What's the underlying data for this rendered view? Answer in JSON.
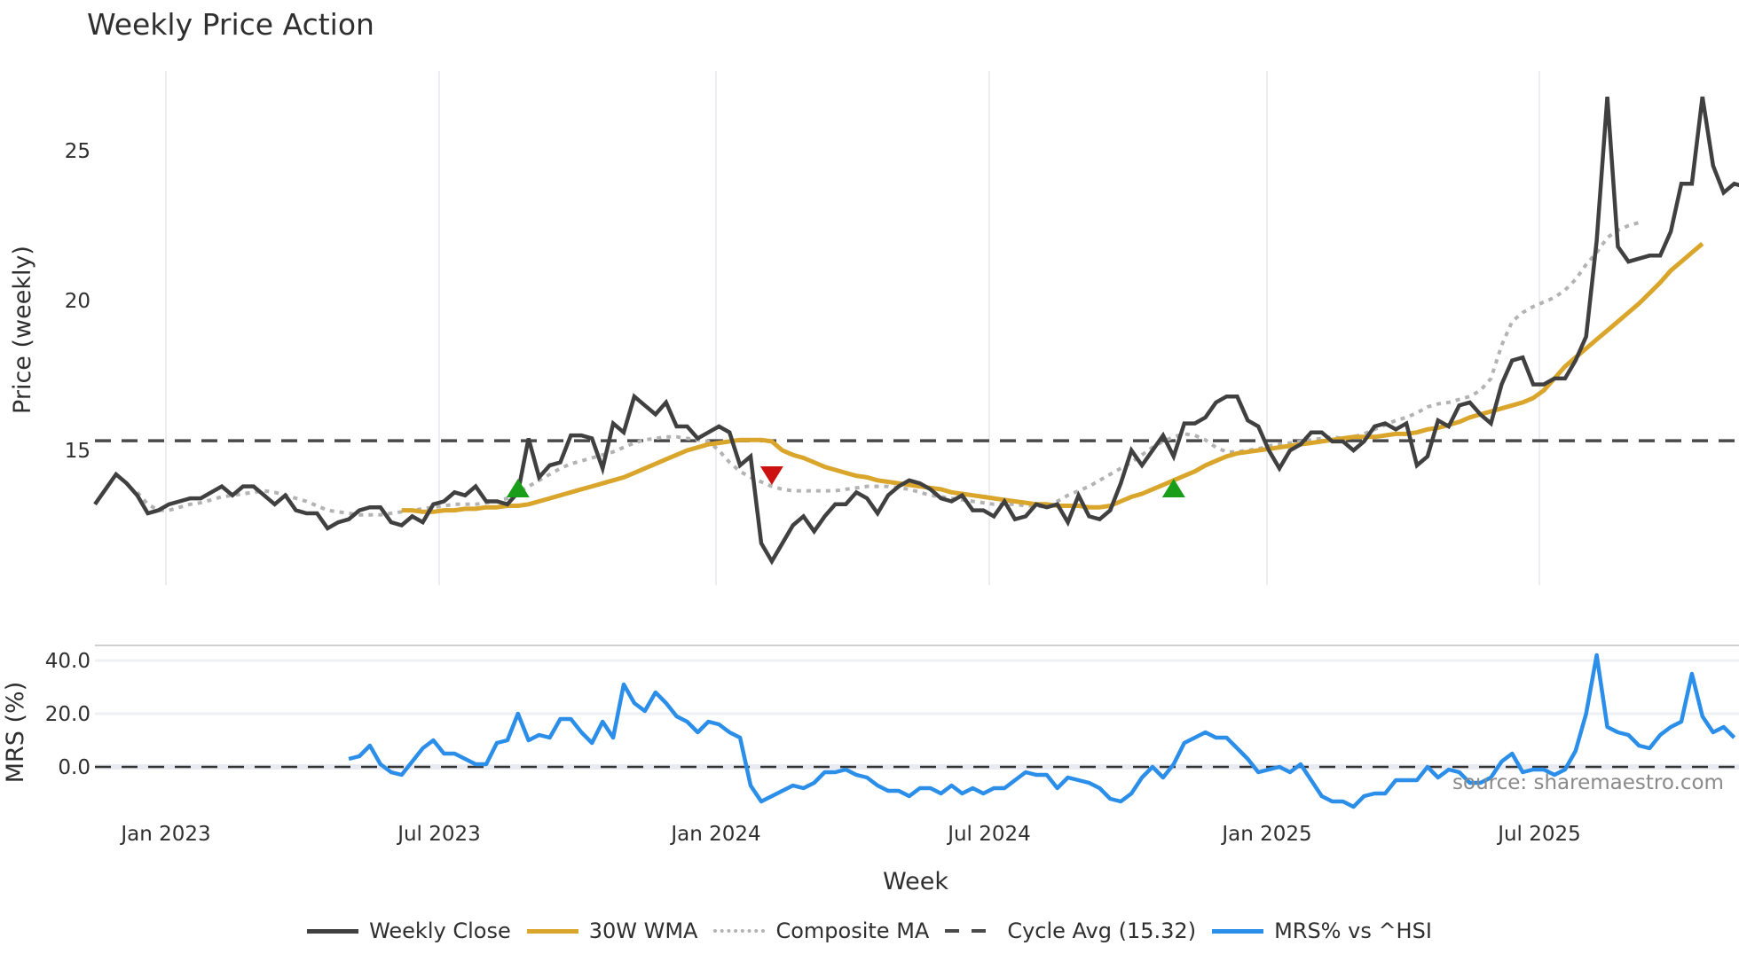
{
  "chart_data": [
    {
      "type": "line",
      "title": "Weekly Price Action",
      "xlabel": "Week",
      "ylabel": "Price (weekly)",
      "x_ticks": [
        "Jan 2023",
        "Jul 2023",
        "Jan 2024",
        "Jul 2024",
        "Jan 2025",
        "Jul 2025"
      ],
      "y_ticks": [
        15,
        20,
        25
      ],
      "ylim": [
        10.6,
        27.6
      ],
      "grid": "vertical",
      "x_start_week_offset": -6.7,
      "series": [
        {
          "name": "Weekly Close",
          "color": "#404040",
          "start_index": 0,
          "values": [
            13.2,
            13.7,
            14.2,
            13.9,
            13.5,
            12.9,
            13.0,
            13.2,
            13.3,
            13.4,
            13.4,
            13.6,
            13.8,
            13.5,
            13.8,
            13.8,
            13.5,
            13.2,
            13.5,
            13.0,
            12.9,
            12.9,
            12.4,
            12.6,
            12.7,
            13.0,
            13.1,
            13.1,
            12.6,
            12.5,
            12.8,
            12.6,
            13.2,
            13.3,
            13.6,
            13.5,
            13.8,
            13.3,
            13.3,
            13.2,
            13.6,
            15.4,
            14.1,
            14.5,
            14.6,
            15.5,
            15.5,
            15.4,
            14.4,
            15.9,
            15.6,
            16.8,
            16.5,
            16.2,
            16.6,
            15.8,
            15.8,
            15.4,
            15.6,
            15.8,
            15.6,
            14.5,
            14.8,
            11.9,
            11.3,
            11.9,
            12.5,
            12.8,
            12.3,
            12.8,
            13.2,
            13.2,
            13.6,
            13.4,
            12.9,
            13.5,
            13.8,
            14.0,
            13.9,
            13.7,
            13.4,
            13.3,
            13.5,
            13.0,
            13.0,
            12.8,
            13.3,
            12.7,
            12.8,
            13.2,
            13.1,
            13.2,
            12.6,
            13.5,
            12.8,
            12.7,
            13.0,
            13.9,
            15.0,
            14.5,
            15.0,
            15.5,
            14.8,
            15.9,
            15.9,
            16.1,
            16.6,
            16.8,
            16.8,
            16.0,
            15.8,
            15.0,
            14.4,
            15.0,
            15.2,
            15.6,
            15.6,
            15.3,
            15.3,
            15.0,
            15.3,
            15.8,
            15.9,
            15.7,
            15.9,
            14.5,
            14.8,
            16.0,
            15.8,
            16.5,
            16.6,
            16.2,
            15.9,
            17.2,
            18.0,
            18.1,
            17.2,
            17.2,
            17.4,
            17.4,
            18.0,
            18.8,
            22.0,
            26.8,
            21.8,
            21.3,
            21.4,
            21.5,
            21.5,
            22.3,
            23.9,
            23.9,
            26.8,
            24.5,
            23.6,
            23.9,
            23.8
          ]
        },
        {
          "name": "30W WMA",
          "color": "#d9a52a",
          "start_index": 29,
          "values": [
            13.0,
            13.0,
            12.95,
            12.95,
            13.0,
            13.0,
            13.05,
            13.05,
            13.1,
            13.1,
            13.15,
            13.15,
            13.2,
            13.3,
            13.4,
            13.5,
            13.6,
            13.7,
            13.8,
            13.9,
            14.0,
            14.1,
            14.25,
            14.4,
            14.55,
            14.7,
            14.85,
            15.0,
            15.1,
            15.2,
            15.25,
            15.3,
            15.35,
            15.35,
            15.35,
            15.3,
            15.0,
            14.85,
            14.75,
            14.6,
            14.45,
            14.35,
            14.25,
            14.15,
            14.1,
            14.0,
            13.95,
            13.9,
            13.85,
            13.8,
            13.75,
            13.7,
            13.6,
            13.55,
            13.5,
            13.45,
            13.4,
            13.35,
            13.3,
            13.25,
            13.2,
            13.2,
            13.15,
            13.15,
            13.15,
            13.1,
            13.1,
            13.15,
            13.3,
            13.45,
            13.55,
            13.7,
            13.85,
            14.0,
            14.15,
            14.3,
            14.5,
            14.65,
            14.8,
            14.9,
            14.95,
            15.0,
            15.05,
            15.1,
            15.15,
            15.2,
            15.25,
            15.3,
            15.35,
            15.4,
            15.45,
            15.45,
            15.45,
            15.5,
            15.55,
            15.55,
            15.6,
            15.7,
            15.75,
            15.85,
            15.95,
            16.1,
            16.2,
            16.3,
            16.4,
            16.5,
            16.6,
            16.75,
            17.0,
            17.4,
            17.8,
            18.1,
            18.4,
            18.7,
            19.0,
            19.3,
            19.6,
            19.9,
            20.25,
            20.6,
            21.0,
            21.3,
            21.6,
            21.9
          ]
        },
        {
          "name": "Composite MA",
          "color": "#b3b3b3",
          "start_index": 4,
          "values": [
            13.6,
            13.2,
            13.0,
            13.0,
            13.1,
            13.2,
            13.25,
            13.35,
            13.45,
            13.5,
            13.55,
            13.6,
            13.65,
            13.6,
            13.5,
            13.4,
            13.3,
            13.15,
            13.0,
            12.95,
            12.9,
            12.85,
            12.85,
            12.85,
            12.9,
            12.95,
            13.0,
            13.05,
            13.1,
            13.15,
            13.2,
            13.2,
            13.2,
            13.25,
            13.3,
            13.4,
            13.6,
            13.8,
            14.0,
            14.2,
            14.4,
            14.55,
            14.65,
            14.75,
            14.85,
            14.95,
            15.1,
            15.25,
            15.35,
            15.4,
            15.45,
            15.45,
            15.4,
            15.35,
            15.3,
            15.0,
            14.6,
            14.3,
            14.1,
            13.95,
            13.8,
            13.7,
            13.65,
            13.65,
            13.65,
            13.65,
            13.65,
            13.7,
            13.75,
            13.8,
            13.8,
            13.8,
            13.75,
            13.7,
            13.6,
            13.5,
            13.45,
            13.4,
            13.35,
            13.3,
            13.25,
            13.2,
            13.2,
            13.2,
            13.15,
            13.15,
            13.1,
            13.3,
            13.5,
            13.65,
            13.8,
            14.0,
            14.2,
            14.4,
            14.6,
            14.85,
            15.1,
            15.3,
            15.45,
            15.55,
            15.5,
            15.35,
            15.1,
            14.95,
            14.95,
            15.0,
            15.05,
            15.15,
            15.2,
            15.25,
            15.3,
            15.35,
            15.4,
            15.45,
            15.4,
            15.45,
            15.55,
            15.7,
            15.85,
            16.0,
            16.1,
            16.25,
            16.45,
            16.55,
            16.6,
            16.7,
            16.8,
            17.0,
            17.4,
            18.5,
            19.3,
            19.6,
            19.8,
            19.95,
            20.1,
            20.35,
            20.7,
            21.2,
            21.6,
            22.1,
            22.35,
            22.5,
            22.6
          ]
        },
        {
          "name": "Cycle Avg (15.32)",
          "color": "#4a4a4a",
          "constant": 15.32
        }
      ],
      "markers": [
        {
          "type": "buy",
          "shape": "triangle-up",
          "color": "#1a9e1a",
          "week_index": 40,
          "value": 13.7
        },
        {
          "type": "sell",
          "shape": "triangle-down",
          "color": "#cc1111",
          "week_index": 64,
          "value": 14.2
        },
        {
          "type": "buy",
          "shape": "triangle-up",
          "color": "#1a9e1a",
          "week_index": 102,
          "value": 13.7
        }
      ]
    },
    {
      "type": "line",
      "ylabel": "MRS (%)",
      "y_ticks": [
        0.0,
        20.0,
        40.0
      ],
      "ylim": [
        -20,
        46
      ],
      "zero_line": "dashed",
      "series": [
        {
          "name": "MRS% vs ^HSI",
          "color": "#2b8ee8",
          "start_index": 24,
          "values": [
            3,
            4,
            8,
            1,
            -2,
            -3,
            2,
            7,
            10,
            5,
            5,
            3,
            1,
            1,
            9,
            10,
            20,
            10,
            12,
            11,
            18,
            18,
            13,
            9,
            17,
            11,
            31,
            24,
            21,
            28,
            24,
            19,
            17,
            13,
            17,
            16,
            13,
            11,
            -7,
            -13,
            -11,
            -9,
            -7,
            -8,
            -6,
            -2,
            -2,
            -1,
            -3,
            -4,
            -7,
            -9,
            -9,
            -11,
            -8,
            -8,
            -10,
            -7,
            -10,
            -8,
            -10,
            -8,
            -8,
            -5,
            -2,
            -3,
            -3,
            -8,
            -4,
            -5,
            -6,
            -8,
            -12,
            -13,
            -10,
            -4,
            0,
            -4,
            1,
            9,
            11,
            13,
            11,
            11,
            7,
            3,
            -2,
            -1,
            0,
            -2,
            1,
            -5,
            -11,
            -13,
            -13,
            -15,
            -11,
            -10,
            -10,
            -5,
            -5,
            -5,
            0,
            -4,
            -1,
            -2,
            -6,
            -6,
            -4,
            2,
            5,
            -2,
            -1,
            -1,
            -3,
            -1,
            6,
            20,
            42,
            15,
            13,
            12,
            8,
            7,
            12,
            15,
            17,
            35,
            19,
            13,
            15,
            11
          ]
        }
      ],
      "annotation": "source: sharemaestro.com"
    }
  ],
  "title": "Weekly Price Action",
  "axes": {
    "price_ylabel": "Price (weekly)",
    "mrs_ylabel": "MRS (%)",
    "xlabel": "Week",
    "price_ticks": [
      "15",
      "20",
      "25"
    ],
    "mrs_ticks": [
      "0.0",
      "20.0",
      "40.0"
    ],
    "x_ticks": [
      "Jan 2023",
      "Jul 2023",
      "Jan 2024",
      "Jul 2024",
      "Jan 2025",
      "Jul 2025"
    ]
  },
  "source": "source: sharemaestro.com",
  "legend": [
    {
      "label": "Weekly Close",
      "style": "solid",
      "color": "#404040"
    },
    {
      "label": "30W WMA",
      "style": "solid",
      "color": "#d9a52a"
    },
    {
      "label": "Composite MA",
      "style": "dotted",
      "color": "#b3b3b3"
    },
    {
      "label": "Cycle Avg (15.32)",
      "style": "dashed",
      "color": "#4a4a4a"
    },
    {
      "label": "MRS% vs ^HSI",
      "style": "solid",
      "color": "#2b8ee8"
    }
  ]
}
